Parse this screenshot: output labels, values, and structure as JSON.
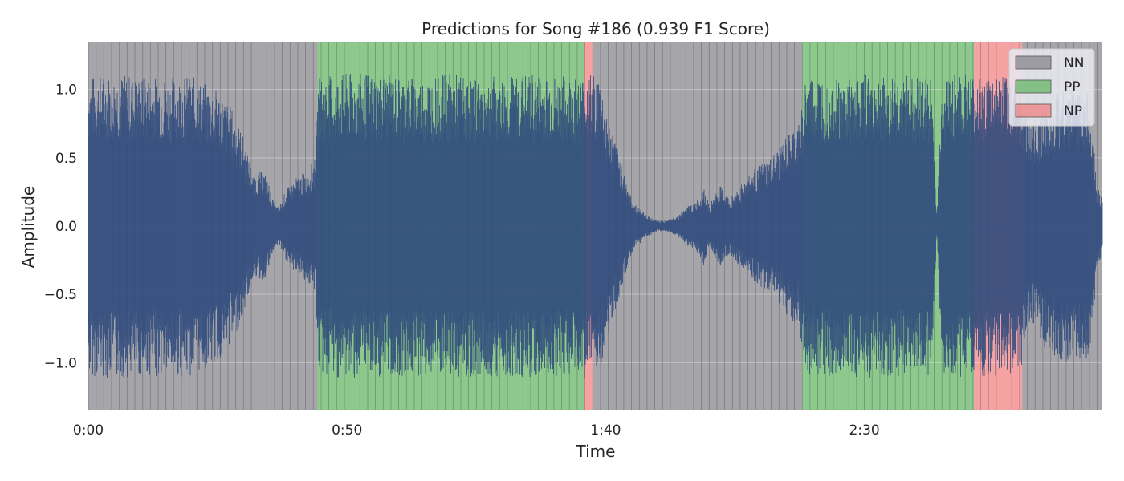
{
  "chart_data": {
    "type": "area",
    "title": "Predictions for Song #186 (0.939 F1 Score)",
    "xlabel": "Time",
    "ylabel": "Amplitude",
    "xlim": [
      0,
      196
    ],
    "ylim": [
      -1.35,
      1.35
    ],
    "x_ticks": [
      {
        "value": 0,
        "label": "0:00"
      },
      {
        "value": 50,
        "label": "0:50"
      },
      {
        "value": 100,
        "label": "1:40"
      },
      {
        "value": 150,
        "label": "2:30"
      }
    ],
    "y_ticks": [
      {
        "value": 1.0,
        "label": "1.0"
      },
      {
        "value": 0.5,
        "label": "0.5"
      },
      {
        "value": 0.0,
        "label": "0.0"
      },
      {
        "value": -0.5,
        "label": "−0.5"
      },
      {
        "value": -1.0,
        "label": "−1.0"
      }
    ],
    "grid": true,
    "legend_position": "top-right",
    "legend": [
      {
        "label": "NN",
        "color": "#7f7f86"
      },
      {
        "label": "PP",
        "color": "#5cb05c"
      },
      {
        "label": "NP",
        "color": "#f07a7a"
      }
    ],
    "segments": [
      {
        "label": "NN",
        "start": 0,
        "end": 44.3
      },
      {
        "label": "PP",
        "start": 44.3,
        "end": 95.9
      },
      {
        "label": "NP",
        "start": 95.9,
        "end": 97.5
      },
      {
        "label": "NN",
        "start": 97.5,
        "end": 138.0
      },
      {
        "label": "PP",
        "start": 138.0,
        "end": 171.2
      },
      {
        "label": "NP",
        "start": 171.2,
        "end": 180.5
      },
      {
        "label": "NN",
        "start": 180.5,
        "end": 196
      }
    ],
    "waveform_envelope": {
      "color": "#2f4a7c",
      "x": [
        0,
        5,
        10,
        15,
        20,
        25,
        28,
        30,
        32,
        33,
        34,
        35,
        36,
        37,
        38,
        39,
        40,
        42,
        44,
        44.5,
        46,
        50,
        55,
        60,
        65,
        70,
        75,
        80,
        85,
        90,
        95,
        97,
        99,
        100,
        102,
        104,
        105,
        106,
        108,
        110,
        112,
        114,
        116,
        118,
        119,
        120,
        121,
        122,
        124,
        126,
        128,
        130,
        132,
        134,
        136,
        137.5,
        138.5,
        142,
        147,
        150,
        152,
        155,
        157,
        160,
        163,
        164,
        165,
        167,
        170,
        172,
        175,
        178,
        180,
        182,
        185,
        188,
        190,
        192,
        193,
        194,
        195,
        196
      ],
      "amplitude": [
        1.1,
        1.12,
        1.1,
        1.1,
        1.1,
        1.0,
        0.85,
        0.65,
        0.35,
        0.4,
        0.4,
        0.3,
        0.15,
        0.15,
        0.25,
        0.3,
        0.35,
        0.4,
        0.5,
        1.1,
        1.1,
        1.12,
        1.12,
        1.1,
        1.1,
        1.12,
        1.1,
        1.1,
        1.12,
        1.1,
        1.1,
        1.12,
        1.1,
        0.85,
        0.6,
        0.35,
        0.2,
        0.15,
        0.08,
        0.04,
        0.04,
        0.08,
        0.15,
        0.2,
        0.3,
        0.15,
        0.22,
        0.3,
        0.2,
        0.3,
        0.4,
        0.45,
        0.5,
        0.6,
        0.7,
        0.75,
        1.1,
        1.1,
        1.1,
        1.12,
        1.1,
        1.1,
        1.1,
        1.1,
        1.1,
        0.05,
        1.1,
        1.12,
        1.1,
        1.1,
        1.1,
        1.1,
        1.1,
        0.7,
        0.9,
        1.0,
        1.0,
        1.0,
        1.0,
        0.8,
        0.3,
        0.2
      ]
    }
  }
}
